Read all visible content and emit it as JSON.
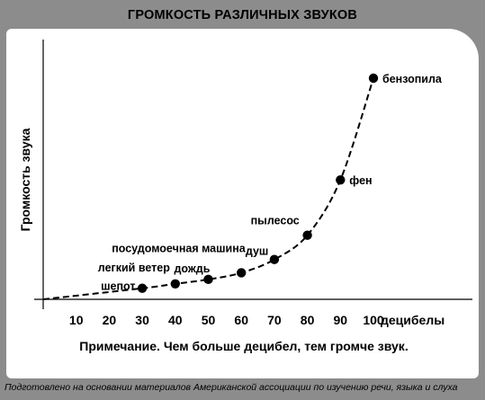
{
  "page": {
    "background": "#8c8c8c",
    "panel_color": "#ffffff"
  },
  "chart_data": {
    "type": "line",
    "title": "ГРОМКОСТЬ РАЗЛИЧНЫХ ЗВУКОВ",
    "xlabel": "децибелы",
    "ylabel": "Громкость звука",
    "x_ticks": [
      10,
      20,
      30,
      40,
      50,
      60,
      70,
      80,
      90,
      100
    ],
    "xlim": [
      0,
      100
    ],
    "line_style": "dashed",
    "grid": false,
    "points": [
      {
        "x": 30,
        "y": 0.05,
        "label": "шепот"
      },
      {
        "x": 40,
        "y": 0.07,
        "label": "легкий ветер"
      },
      {
        "x": 50,
        "y": 0.09,
        "label": "дождь"
      },
      {
        "x": 60,
        "y": 0.12,
        "label": "посудомоечная машина"
      },
      {
        "x": 70,
        "y": 0.18,
        "label": "душ"
      },
      {
        "x": 80,
        "y": 0.29,
        "label": "пылесос"
      },
      {
        "x": 90,
        "y": 0.54,
        "label": "фен"
      },
      {
        "x": 100,
        "y": 1.0,
        "label": "бензопила"
      }
    ],
    "note": "Примечание. Чем больше децибел, тем громче звук."
  },
  "footer": "Подготовлено на основании материалов Американской ассоциации по изучению речи, языка и слуха"
}
